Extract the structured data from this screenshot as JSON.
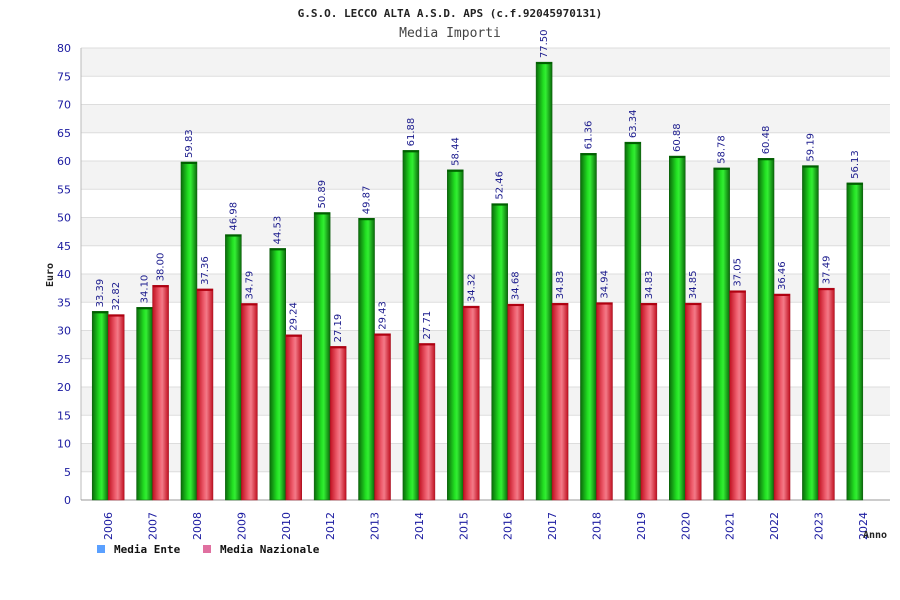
{
  "chart_data": {
    "type": "bar",
    "title": "G.S.O. LECCO ALTA A.S.D. APS (c.f.92045970131)",
    "subtitle": "Media Importi",
    "xlabel": "Anno",
    "ylabel": "Euro",
    "ylim": [
      0,
      80
    ],
    "ytick_step": 5,
    "grid": true,
    "legend_position": "bottom-left",
    "categories": [
      "2006",
      "2007",
      "2008",
      "2009",
      "2010",
      "2012",
      "2013",
      "2014",
      "2015",
      "2016",
      "2017",
      "2018",
      "2019",
      "2020",
      "2021",
      "2022",
      "2023",
      "2024"
    ],
    "series": [
      {
        "name": "Media Ente",
        "color": "#00b000",
        "legend_color": "#5aa0ff",
        "values": [
          33.39,
          34.1,
          59.83,
          46.98,
          44.53,
          50.89,
          49.87,
          61.88,
          58.44,
          52.46,
          77.5,
          61.36,
          63.34,
          60.88,
          58.78,
          60.48,
          59.19,
          56.13
        ]
      },
      {
        "name": "Media Nazionale",
        "color": "#e8182a",
        "legend_color": "#e070a0",
        "values": [
          32.82,
          38.0,
          37.36,
          34.79,
          29.24,
          27.19,
          29.43,
          27.71,
          34.32,
          34.68,
          34.83,
          34.94,
          34.83,
          34.85,
          37.05,
          36.46,
          37.49,
          null
        ]
      }
    ]
  }
}
